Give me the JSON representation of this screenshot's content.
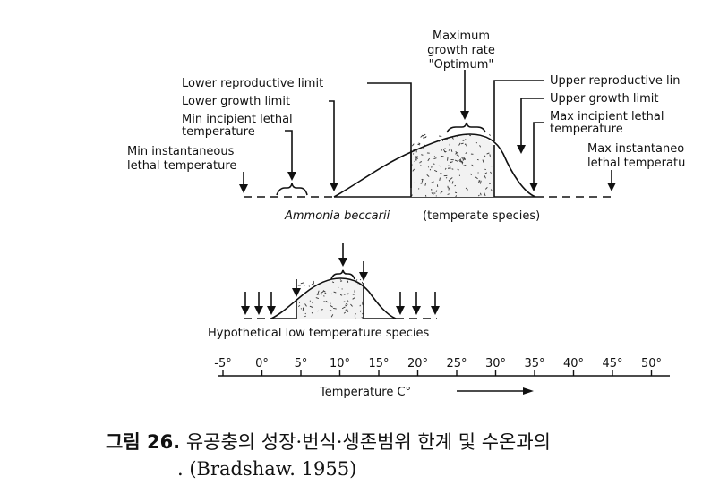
{
  "top_diagram": {
    "title_optimum": [
      "Maximum",
      "growth rate",
      "\"Optimum\""
    ],
    "lower_reproductive_limit": "Lower reproductive limit",
    "lower_growth_limit": "Lower growth limit",
    "min_incipient_lethal": [
      "Min incipient lethal",
      "temperature"
    ],
    "min_instantaneous_lethal": [
      "Min instantaneous",
      "lethal temperature"
    ],
    "upper_reproductive_limit": "Upper reproductive lin",
    "upper_growth_limit": "Upper growth limit",
    "max_incipient_lethal": [
      "Max incipient lethal",
      "temperature"
    ],
    "max_instantaneous_lethal": [
      "Max instantaneo",
      "lethal temperatu"
    ],
    "species_name": "Ammonia beccarii",
    "species_note": "(temperate species)"
  },
  "bottom_diagram": {
    "species_label": "Hypothetical low temperature species"
  },
  "axis": {
    "ticks": [
      "-5°",
      "0°",
      "5°",
      "10°",
      "15°",
      "20°",
      "25°",
      "30°",
      "35°",
      "40°",
      "45°",
      "50°"
    ],
    "label": "Temperature C°"
  },
  "caption": {
    "figure_number": "그림 26.",
    "text": "유공충의 성장·번식·생존범위 한계 및 수온과의",
    "source": ". (Bradshaw. 1955)"
  }
}
